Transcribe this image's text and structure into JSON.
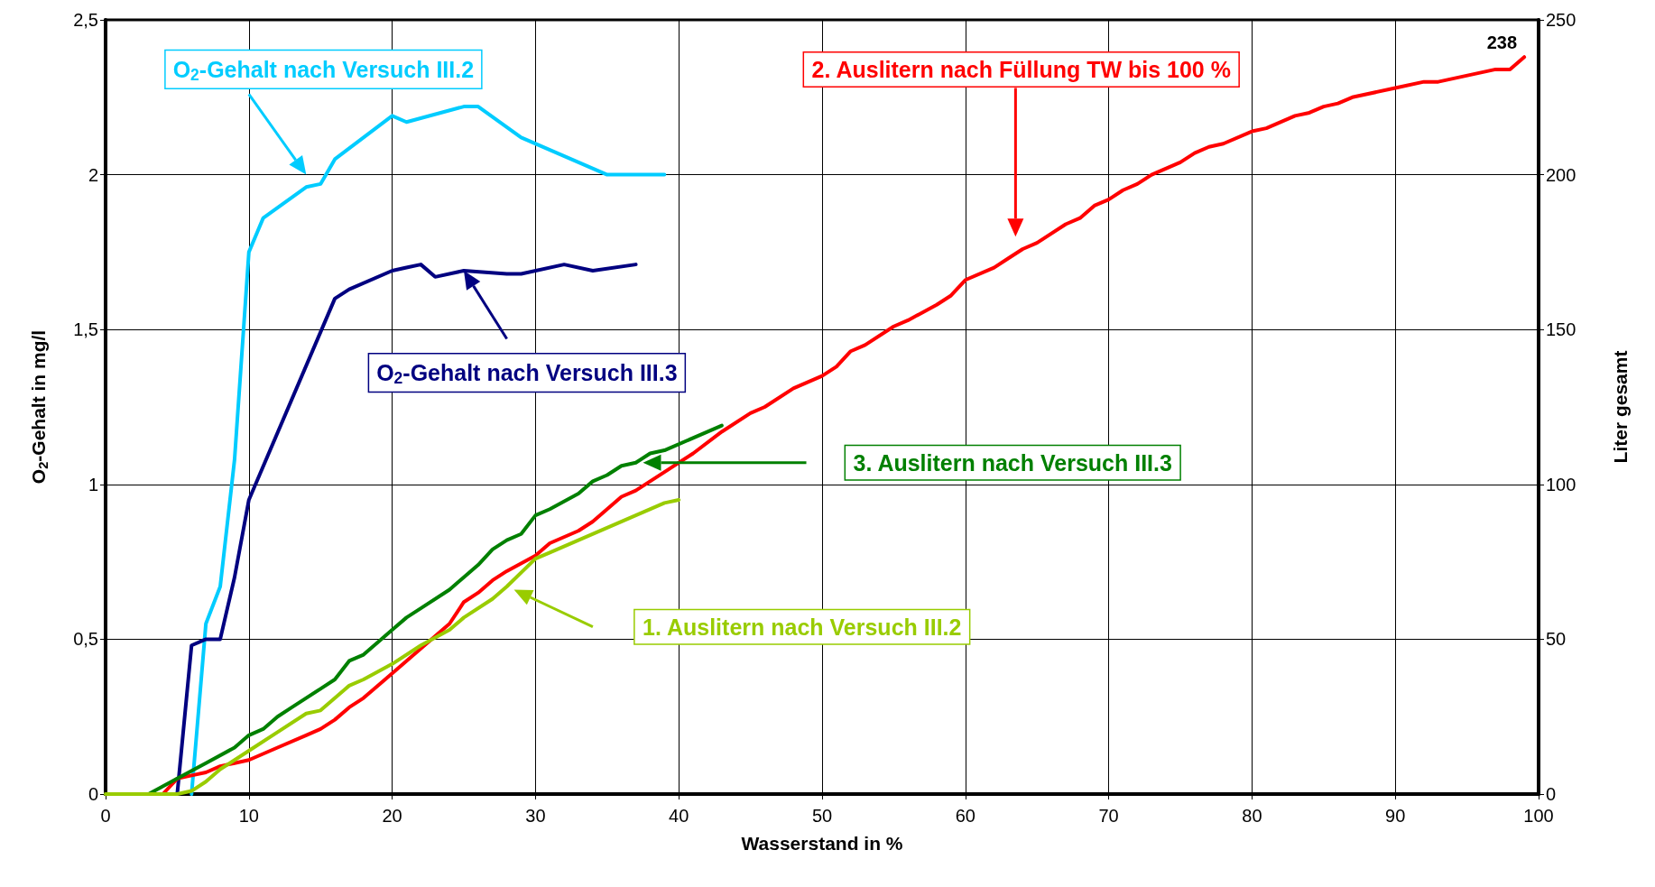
{
  "chart_data": {
    "type": "line",
    "xlabel": "Wasserstand in %",
    "ylabel": "O$_{2}$-Gehalt in mg/l",
    "y2label": "Liter gesamt",
    "xlim": [
      0,
      100
    ],
    "xticks": [
      0,
      10,
      20,
      30,
      40,
      50,
      60,
      70,
      80,
      90,
      100
    ],
    "ylim": [
      0,
      2.5
    ],
    "yticks": [
      0,
      {
        "value": 0.5,
        "label": "0,5"
      },
      1,
      {
        "value": 1.5,
        "label": "1,5"
      },
      2,
      {
        "value": 2.5,
        "label": "2,5"
      }
    ],
    "y2lim": [
      0,
      250
    ],
    "y2ticks": [
      0,
      50,
      100,
      150,
      200,
      250
    ],
    "grid": true,
    "legend": false,
    "marker": "none",
    "line_style": "solid",
    "series": [
      {
        "color": "#00ccff",
        "x": [
          6,
          7,
          8,
          9,
          10,
          11,
          14,
          15,
          16,
          20,
          21,
          25,
          26,
          29,
          35,
          39
        ],
        "values": [
          0,
          0.55,
          0.67,
          1.08,
          1.75,
          1.86,
          1.96,
          1.97,
          2.05,
          2.19,
          2.17,
          2.22,
          2.22,
          2.12,
          2.0,
          2.0
        ]
      },
      {
        "color": "#000080",
        "x": [
          5,
          6,
          7,
          8,
          9,
          10,
          16,
          17,
          20,
          21,
          22,
          23,
          25,
          28,
          29,
          32,
          34,
          37
        ],
        "values": [
          0,
          0.48,
          0.5,
          0.5,
          0.7,
          0.95,
          1.6,
          1.63,
          1.69,
          1.7,
          1.71,
          1.67,
          1.69,
          1.68,
          1.68,
          1.71,
          1.69,
          1.71
        ]
      },
      {
        "color": "#ff0000",
        "axis": "y2",
        "x": [
          0,
          4,
          5,
          6,
          7,
          8,
          9,
          10,
          12,
          14,
          15,
          16,
          17,
          18,
          20,
          22,
          23,
          24,
          25,
          26,
          27,
          28,
          30,
          31,
          33,
          34,
          36,
          37,
          39,
          41,
          43,
          45,
          46,
          48,
          50,
          51,
          52,
          53,
          55,
          56,
          58,
          59,
          60,
          62,
          63,
          64,
          65,
          67,
          68,
          69,
          70,
          71,
          72,
          73,
          75,
          76,
          77,
          78,
          80,
          81,
          83,
          84,
          85,
          86,
          87,
          90,
          92,
          93,
          97,
          98,
          99
        ],
        "values": [
          0,
          0,
          5,
          6,
          7,
          9,
          10,
          11,
          15,
          19,
          21,
          24,
          28,
          31,
          39,
          47,
          51,
          55,
          62,
          65,
          69,
          72,
          77,
          81,
          85,
          88,
          96,
          98,
          104,
          110,
          117,
          123,
          125,
          131,
          135,
          138,
          143,
          145,
          151,
          153,
          158,
          161,
          166,
          170,
          173,
          176,
          178,
          184,
          186,
          190,
          192,
          195,
          197,
          200,
          204,
          207,
          209,
          210,
          214,
          215,
          219,
          220,
          222,
          223,
          225,
          228,
          230,
          230,
          234,
          234,
          238
        ],
        "value_labels": [
          null,
          null,
          null,
          null,
          null,
          null,
          null,
          null,
          null,
          null,
          null,
          null,
          null,
          null,
          null,
          null,
          null,
          null,
          null,
          null,
          null,
          null,
          null,
          null,
          null,
          null,
          null,
          null,
          null,
          null,
          null,
          null,
          null,
          null,
          null,
          null,
          null,
          null,
          null,
          null,
          null,
          null,
          null,
          null,
          null,
          null,
          null,
          null,
          null,
          null,
          null,
          null,
          null,
          null,
          null,
          null,
          null,
          null,
          null,
          null,
          null,
          null,
          null,
          null,
          null,
          null,
          null,
          null,
          null,
          null,
          "238"
        ]
      },
      {
        "color": "#008000",
        "axis": "y2",
        "x": [
          0,
          3,
          5,
          7,
          9,
          10,
          11,
          12,
          13,
          15,
          16,
          17,
          18,
          20,
          21,
          22,
          24,
          25,
          26,
          27,
          28,
          29,
          30,
          31,
          33,
          34,
          35,
          36,
          37,
          38,
          39,
          43
        ],
        "values": [
          0,
          0,
          5,
          10,
          15,
          19,
          21,
          25,
          28,
          34,
          37,
          43,
          45,
          53,
          57,
          60,
          66,
          70,
          74,
          79,
          82,
          84,
          90,
          92,
          97,
          101,
          103,
          106,
          107,
          110,
          111,
          119
        ]
      },
      {
        "color": "#99cc00",
        "axis": "y2",
        "x": [
          0,
          5,
          6,
          7,
          8,
          10,
          12,
          14,
          15,
          17,
          18,
          20,
          22,
          24,
          25,
          27,
          28,
          30,
          31,
          33,
          35,
          37,
          39,
          40
        ],
        "values": [
          0,
          0,
          1,
          4,
          8,
          14,
          20,
          26,
          27,
          35,
          37,
          42,
          48,
          53,
          57,
          63,
          67,
          76,
          78,
          82,
          86,
          90,
          94,
          95
        ]
      }
    ],
    "annotations": [
      "O$_{2}$-Gehalt nach Versuch III.2",
      "O$_{2}$-Gehalt nach Versuch III.3",
      "2. Auslitern nach Füllung TW bis 100 %",
      "3. Auslitern nach Versuch III.3",
      "1. Auslitern nach Versuch III.2"
    ]
  }
}
